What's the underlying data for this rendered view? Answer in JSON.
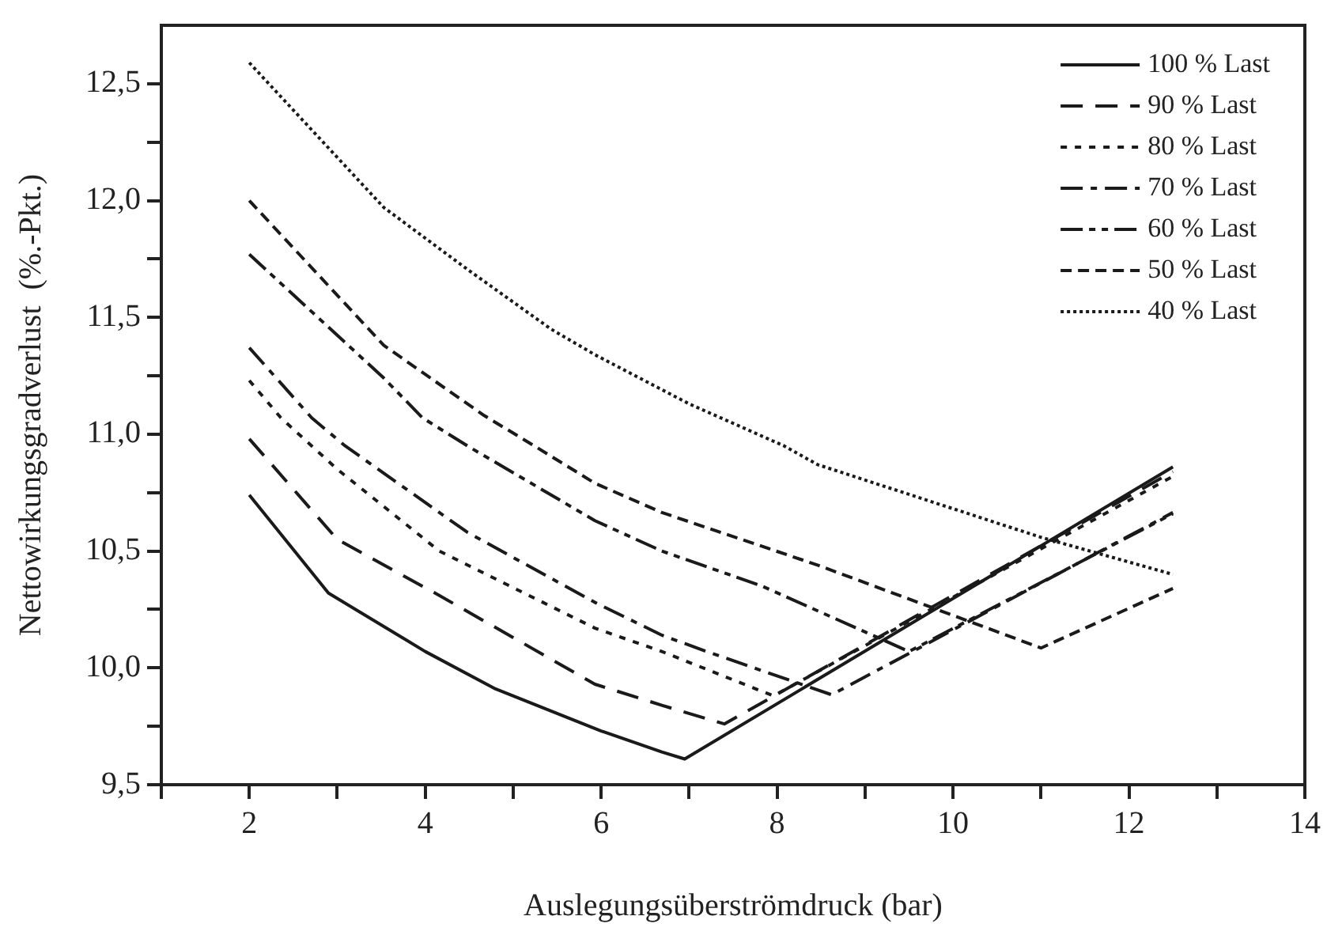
{
  "chart_data": {
    "type": "line",
    "xlabel": "Auslegungsüberströmdruck (bar)",
    "ylabel": "Nettowirkungsgradverlust  (%.-Pkt.)",
    "xlim": [
      1,
      14
    ],
    "xticks": [
      {
        "value": 1,
        "label": null
      },
      2,
      {
        "value": 3,
        "label": null
      },
      4,
      {
        "value": 5,
        "label": null
      },
      6,
      {
        "value": 7,
        "label": null
      },
      8,
      {
        "value": 9,
        "label": null
      },
      10,
      {
        "value": 11,
        "label": null
      },
      12,
      {
        "value": 13,
        "label": null
      },
      14
    ],
    "ylim": [
      9.5,
      12.75
    ],
    "yticks": [
      {
        "value": 9.5,
        "label": "9,5"
      },
      {
        "value": 9.75,
        "label": null
      },
      {
        "value": 10,
        "label": "10,0"
      },
      {
        "value": 10.25,
        "label": null
      },
      {
        "value": 10.5,
        "label": "10,5"
      },
      {
        "value": 10.75,
        "label": null
      },
      {
        "value": 11,
        "label": "11,0"
      },
      {
        "value": 11.25,
        "label": null
      },
      {
        "value": 11.5,
        "label": "11,5"
      },
      {
        "value": 11.75,
        "label": null
      },
      {
        "value": 12,
        "label": "12,0"
      },
      {
        "value": 12.25,
        "label": null
      },
      {
        "value": 12.5,
        "label": "12,5"
      }
    ],
    "grid": false,
    "legend": "top right",
    "marker": "none",
    "series": [
      {
        "name": "100 % Last",
        "color": "#1a1a1a",
        "line_style": "solid",
        "x": [
          2,
          2.9,
          4,
          4.8,
          6,
          6.69,
          6.95,
          12.5
        ],
        "values": [
          10.74,
          10.32,
          10.07,
          9.91,
          9.73,
          9.64,
          9.61,
          10.86
        ]
      },
      {
        "name": "90 % Last",
        "color": "#1a1a1a",
        "line_style": "dashed",
        "x": [
          2,
          3,
          4.16,
          5.93,
          6.69,
          7.4,
          12.5
        ],
        "values": [
          10.98,
          10.55,
          10.31,
          9.93,
          9.84,
          9.76,
          10.84
        ]
      },
      {
        "name": "80 % Last",
        "color": "#1a1a1a",
        "line_style": "dotted",
        "x": [
          2,
          2.36,
          3,
          4.16,
          5.93,
          6.69,
          7.96,
          12.5
        ],
        "values": [
          11.23,
          11.07,
          10.85,
          10.5,
          10.17,
          10.07,
          9.88,
          10.82
        ]
      },
      {
        "name": "70 % Last",
        "color": "#1a1a1a",
        "line_style": "dashdot",
        "x": [
          2,
          2.71,
          3.09,
          4.48,
          5.93,
          6.69,
          7.2,
          8.62,
          12.5
        ],
        "values": [
          11.37,
          11.07,
          10.95,
          10.58,
          10.28,
          10.14,
          10.07,
          9.885,
          10.665
        ]
      },
      {
        "name": "60 % Last",
        "color": "#1a1a1a",
        "line_style": "dashdotdot",
        "x": [
          2,
          3.53,
          3.97,
          4.48,
          5.93,
          6.69,
          7.83,
          9.5,
          12.5
        ],
        "values": [
          11.77,
          11.24,
          11.07,
          10.95,
          10.63,
          10.5,
          10.35,
          10.07,
          10.66
        ]
      },
      {
        "name": "50 % Last",
        "color": "#1a1a1a",
        "line_style": "shortdash",
        "x": [
          2,
          3.53,
          4.67,
          5.24,
          5.93,
          6.69,
          8.46,
          11,
          12.5
        ],
        "values": [
          12,
          11.38,
          11.08,
          10.95,
          10.79,
          10.665,
          10.44,
          10.085,
          10.34
        ]
      },
      {
        "name": "40 % Last",
        "color": "#1a1a1a",
        "line_style": "densedot",
        "x": [
          2,
          3.53,
          4.5,
          5.43,
          5.93,
          7,
          8.08,
          8.46,
          10.99,
          12.5
        ],
        "values": [
          12.59,
          11.97,
          11.7,
          11.45,
          11.34,
          11.13,
          10.95,
          10.87,
          10.56,
          10.4
        ]
      }
    ]
  }
}
